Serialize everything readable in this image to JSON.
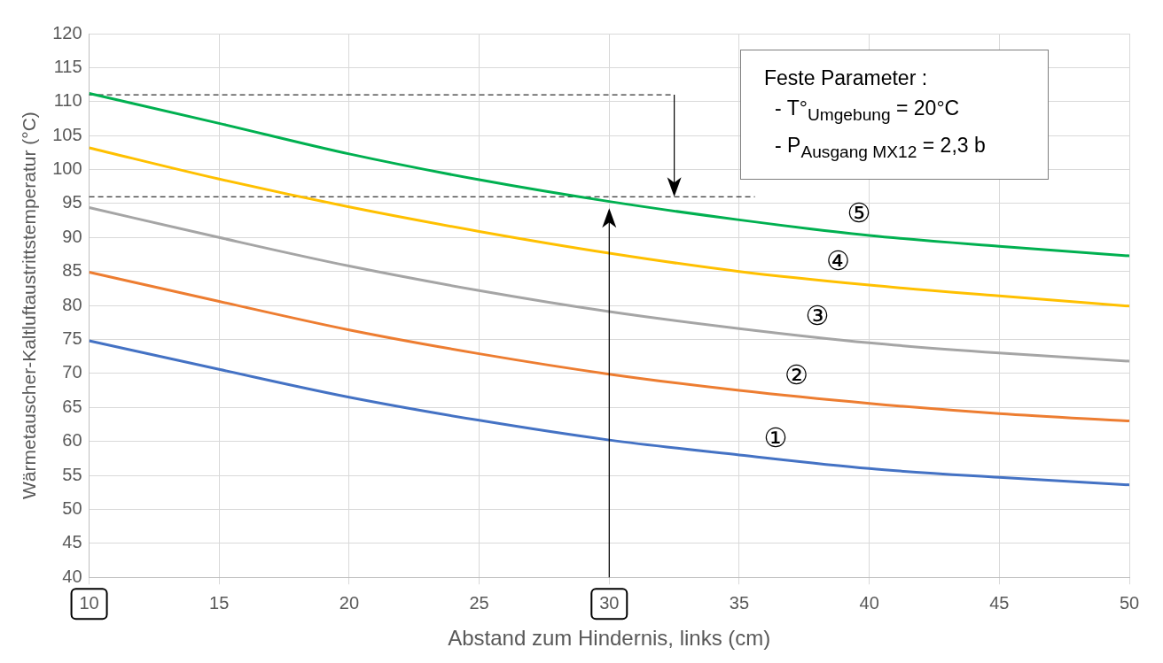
{
  "chart_data": {
    "type": "line",
    "xlabel": "Abstand zum Hindernis, links (cm)",
    "ylabel": "Wärmetauscher-Kaltluftaustrittstemperatur (°C)",
    "x": [
      10,
      15,
      20,
      25,
      30,
      35,
      40,
      45,
      50
    ],
    "series": [
      {
        "name": "①",
        "color": "#4472c4",
        "values": [
          74.8,
          70.6,
          66.5,
          63.1,
          60.2,
          58.0,
          56.0,
          54.7,
          53.6
        ]
      },
      {
        "name": "②",
        "color": "#ed7d31",
        "values": [
          84.9,
          80.6,
          76.4,
          72.9,
          69.9,
          67.5,
          65.6,
          64.1,
          63.0
        ]
      },
      {
        "name": "③",
        "color": "#a5a5a5",
        "values": [
          94.4,
          90.0,
          85.8,
          82.2,
          79.1,
          76.6,
          74.5,
          73.0,
          71.8
        ]
      },
      {
        "name": "④",
        "color": "#ffc000",
        "values": [
          103.2,
          98.6,
          94.5,
          90.9,
          87.7,
          85.0,
          83.0,
          81.4,
          79.9
        ]
      },
      {
        "name": "⑤",
        "color": "#00b050",
        "values": [
          111.2,
          106.8,
          102.3,
          98.5,
          95.3,
          92.6,
          90.3,
          88.7,
          87.3
        ]
      }
    ],
    "xlim": [
      10,
      50
    ],
    "xticks": [
      10,
      15,
      20,
      25,
      30,
      35,
      40,
      45,
      50
    ],
    "ylim": [
      40,
      120
    ],
    "yticks": [
      40,
      45,
      50,
      55,
      60,
      65,
      70,
      75,
      80,
      85,
      90,
      95,
      100,
      105,
      110,
      115,
      120
    ],
    "ref_lines": [
      {
        "axis": "y",
        "value": 111,
        "color": "#000000",
        "line_style": "dashed"
      },
      {
        "axis": "y",
        "value": 96,
        "color": "#000000",
        "line_style": "dashed"
      },
      {
        "axis": "x",
        "value": 30,
        "color": "#000000",
        "line_style": "solid"
      }
    ],
    "annotations": [
      "Feste Parameter :",
      "- T°$_{Umgebung}$ = 20°C",
      "- P$_{Ausgang MX12}$ = 2,3 b"
    ],
    "grid": true,
    "legend": false,
    "marker": "none",
    "line_style": "solid"
  }
}
